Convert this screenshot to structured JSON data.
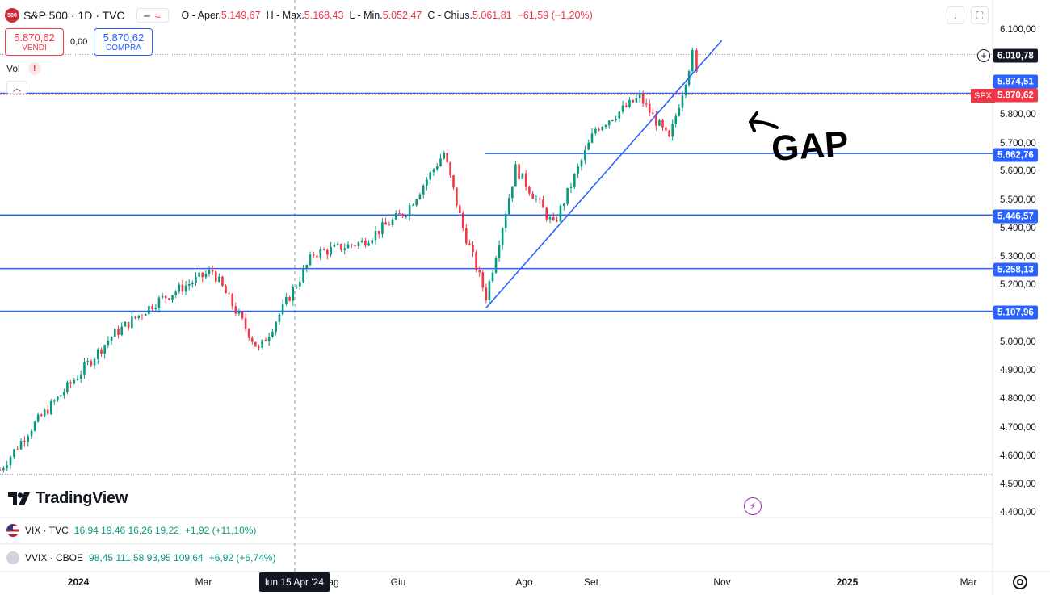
{
  "header": {
    "symbol_badge": "500",
    "title": "S&P 500 · 1D · TVC",
    "ohlc": [
      {
        "key": "O",
        "label": "Aper.",
        "value": "5.149,67"
      },
      {
        "key": "H",
        "label": "Max.",
        "value": "5.168,43"
      },
      {
        "key": "L",
        "label": "Min.",
        "value": "5.052,47"
      },
      {
        "key": "C",
        "label": "Chius.",
        "value": "5.061,81"
      }
    ],
    "change": "−61,59 (−1,20%)",
    "colors": {
      "down": "#f23645",
      "up": "#089981",
      "line": "#2962ff"
    }
  },
  "trade": {
    "sell_price": "5.870,62",
    "sell_label": "VENDI",
    "spread": "0,00",
    "buy_price": "5.870,62",
    "buy_label": "COMPRA"
  },
  "volume": {
    "label": "Vol",
    "warning": "!"
  },
  "logo": {
    "text": "TradingView"
  },
  "indices": [
    {
      "text": "VIX · TVC",
      "values": "16,94  19,46  16,26  19,22",
      "change": "+1,92 (+11,10%)"
    },
    {
      "text": "VVIX · CBOE",
      "values": "98,45  111,58  93,95  109,64",
      "change": "+6,92 (+6,74%)"
    }
  ],
  "annotation": {
    "text": "GAP"
  },
  "x_axis": {
    "labels": [
      {
        "text": "2024",
        "bold": true,
        "x": 97
      },
      {
        "text": "Mar",
        "bold": false,
        "x": 252
      },
      {
        "text": "ag",
        "bold": false,
        "x": 413
      },
      {
        "text": "Giu",
        "bold": false,
        "x": 493
      },
      {
        "text": "Ago",
        "bold": false,
        "x": 649
      },
      {
        "text": "Set",
        "bold": false,
        "x": 732
      },
      {
        "text": "Nov",
        "bold": false,
        "x": 894
      },
      {
        "text": "2025",
        "bold": true,
        "x": 1049
      },
      {
        "text": "Mar",
        "bold": false,
        "x": 1199
      }
    ],
    "crosshair": "lun 15 Apr '24"
  },
  "y_axis": {
    "ticks": [
      "6.100,00",
      "5.800,00",
      "5.700,00",
      "5.600,00",
      "5.500,00",
      "5.400,00",
      "5.300,00",
      "5.200,00",
      "5.000,00",
      "4.900,00",
      "4.800,00",
      "4.700,00",
      "4.600,00",
      "4.500,00",
      "4.400,00"
    ],
    "spx_label": "SPX",
    "high_tag": "6.010,78",
    "last_tag": "5.870,62",
    "level_tags": [
      "5.874,51",
      "5.662,76",
      "5.446,57",
      "5.258,13",
      "5.107,96"
    ]
  },
  "chart_data": {
    "type": "candlestick",
    "title": "S&P 500 · 1D · TVC",
    "x_range": [
      "2023-12-18",
      "2025-03-31"
    ],
    "y_range": [
      4400,
      6150
    ],
    "support_resistance_levels": [
      5874.51,
      5662.76,
      5446.57,
      5258.13,
      5107.96
    ],
    "dotted_levels": [
      6010.78,
      4535
    ],
    "last_price": 5870.62,
    "trendline": [
      [
        "2024-08-05",
        5120
      ],
      [
        "2024-11-25",
        6060
      ]
    ],
    "series": [
      {
        "x": "2023-12-18",
        "close": 4550
      },
      {
        "x": "2024-01-02",
        "close": 4700
      },
      {
        "x": "2024-01-19",
        "close": 4840
      },
      {
        "x": "2024-02-09",
        "close": 5020
      },
      {
        "x": "2024-03-01",
        "close": 5140
      },
      {
        "x": "2024-03-28",
        "close": 5250
      },
      {
        "x": "2024-04-19",
        "close": 4970
      },
      {
        "x": "2024-05-15",
        "close": 5310
      },
      {
        "x": "2024-06-07",
        "close": 5350
      },
      {
        "x": "2024-06-28",
        "close": 5460
      },
      {
        "x": "2024-07-16",
        "close": 5665
      },
      {
        "x": "2024-07-25",
        "close": 5400
      },
      {
        "x": "2024-08-05",
        "close": 5160
      },
      {
        "x": "2024-08-19",
        "close": 5610
      },
      {
        "x": "2024-09-06",
        "close": 5410
      },
      {
        "x": "2024-09-26",
        "close": 5750
      },
      {
        "x": "2024-10-17",
        "close": 5860
      },
      {
        "x": "2024-10-31",
        "close": 5710
      },
      {
        "x": "2024-11-11",
        "close": 6010
      },
      {
        "x": "2024-11-15",
        "close": 5870
      }
    ]
  }
}
